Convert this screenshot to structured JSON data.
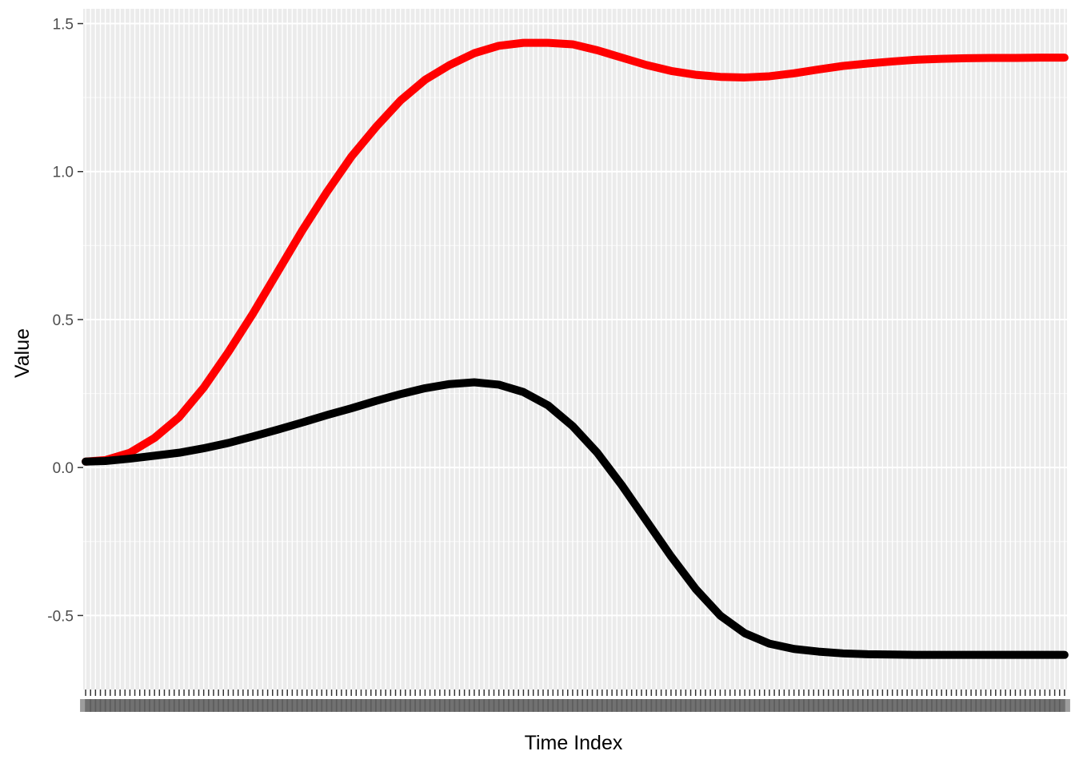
{
  "chart_data": {
    "type": "line",
    "title": "",
    "xlabel": "Time Index",
    "ylabel": "Value",
    "xlim": [
      1,
      200
    ],
    "ylim": [
      -0.75,
      1.55
    ],
    "x_axis_note": "200 discrete categories; tick labels overprinted and illegible",
    "y_ticks": [
      -0.5,
      0.0,
      0.5,
      1.0,
      1.5
    ],
    "y_tick_labels": [
      "-0.5",
      "0.0",
      "0.5",
      "1.0",
      "1.5"
    ],
    "grid": true,
    "legend": "none",
    "series": [
      {
        "color": "#ff0000",
        "points": [
          [
            1,
            0.02
          ],
          [
            5,
            0.025
          ],
          [
            10,
            0.05
          ],
          [
            15,
            0.1
          ],
          [
            20,
            0.17
          ],
          [
            25,
            0.27
          ],
          [
            30,
            0.39
          ],
          [
            35,
            0.52
          ],
          [
            40,
            0.66
          ],
          [
            45,
            0.8
          ],
          [
            50,
            0.93
          ],
          [
            55,
            1.05
          ],
          [
            60,
            1.15
          ],
          [
            65,
            1.24
          ],
          [
            70,
            1.31
          ],
          [
            75,
            1.36
          ],
          [
            80,
            1.4
          ],
          [
            85,
            1.425
          ],
          [
            90,
            1.435
          ],
          [
            95,
            1.435
          ],
          [
            100,
            1.43
          ],
          [
            105,
            1.41
          ],
          [
            110,
            1.385
          ],
          [
            115,
            1.36
          ],
          [
            120,
            1.34
          ],
          [
            125,
            1.327
          ],
          [
            130,
            1.32
          ],
          [
            135,
            1.318
          ],
          [
            140,
            1.322
          ],
          [
            145,
            1.332
          ],
          [
            150,
            1.345
          ],
          [
            155,
            1.357
          ],
          [
            160,
            1.365
          ],
          [
            165,
            1.372
          ],
          [
            170,
            1.378
          ],
          [
            175,
            1.381
          ],
          [
            180,
            1.383
          ],
          [
            185,
            1.384
          ],
          [
            190,
            1.384
          ],
          [
            195,
            1.385
          ],
          [
            200,
            1.385
          ]
        ]
      },
      {
        "color": "#000000",
        "points": [
          [
            1,
            0.02
          ],
          [
            5,
            0.022
          ],
          [
            10,
            0.03
          ],
          [
            15,
            0.04
          ],
          [
            20,
            0.05
          ],
          [
            25,
            0.065
          ],
          [
            30,
            0.083
          ],
          [
            35,
            0.105
          ],
          [
            40,
            0.128
          ],
          [
            45,
            0.152
          ],
          [
            50,
            0.177
          ],
          [
            55,
            0.2
          ],
          [
            60,
            0.225
          ],
          [
            65,
            0.248
          ],
          [
            70,
            0.268
          ],
          [
            75,
            0.282
          ],
          [
            80,
            0.288
          ],
          [
            85,
            0.28
          ],
          [
            90,
            0.255
          ],
          [
            95,
            0.21
          ],
          [
            100,
            0.14
          ],
          [
            105,
            0.05
          ],
          [
            110,
            -0.06
          ],
          [
            115,
            -0.18
          ],
          [
            120,
            -0.3
          ],
          [
            125,
            -0.41
          ],
          [
            130,
            -0.5
          ],
          [
            135,
            -0.56
          ],
          [
            140,
            -0.595
          ],
          [
            145,
            -0.613
          ],
          [
            150,
            -0.622
          ],
          [
            155,
            -0.628
          ],
          [
            160,
            -0.631
          ],
          [
            165,
            -0.632
          ],
          [
            170,
            -0.633
          ],
          [
            175,
            -0.633
          ],
          [
            180,
            -0.633
          ],
          [
            185,
            -0.633
          ],
          [
            190,
            -0.633
          ],
          [
            195,
            -0.633
          ],
          [
            200,
            -0.633
          ]
        ]
      }
    ]
  }
}
